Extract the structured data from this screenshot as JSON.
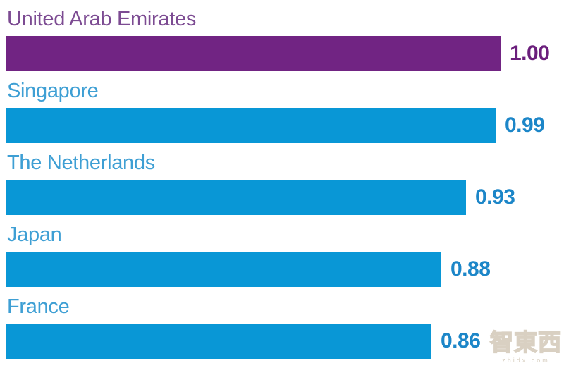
{
  "chart_data": {
    "type": "bar",
    "orientation": "horizontal",
    "title": "",
    "xlabel": "",
    "ylabel": "",
    "xlim": [
      0,
      1.0
    ],
    "grid": false,
    "legend_position": "none",
    "categories": [
      "United Arab Emirates",
      "Singapore",
      "The Netherlands",
      "Japan",
      "France"
    ],
    "values": [
      1.0,
      0.99,
      0.93,
      0.88,
      0.86
    ],
    "value_labels": [
      "1.00",
      "0.99",
      "0.93",
      "0.88",
      "0.86"
    ],
    "bars": [
      {
        "label": "United Arab Emirates",
        "value": 1.0,
        "value_label": "1.00",
        "bar_color": "#712483",
        "label_color": "#7C4B92",
        "value_color": "#6B1F7C"
      },
      {
        "label": "Singapore",
        "value": 0.99,
        "value_label": "0.99",
        "bar_color": "#0997D6",
        "label_color": "#3E9FD4",
        "value_color": "#1C86C8"
      },
      {
        "label": "The Netherlands",
        "value": 0.93,
        "value_label": "0.93",
        "bar_color": "#0997D6",
        "label_color": "#3E9FD4",
        "value_color": "#1C86C8"
      },
      {
        "label": "Japan",
        "value": 0.88,
        "value_label": "0.88",
        "bar_color": "#0997D6",
        "label_color": "#3E9FD4",
        "value_color": "#1C86C8"
      },
      {
        "label": "France",
        "value": 0.86,
        "value_label": "0.86",
        "bar_color": "#0997D6",
        "label_color": "#3E9FD4",
        "value_color": "#1C86C8"
      }
    ],
    "colors": {
      "highlight_bar": "#712483",
      "default_bar": "#0997D6"
    }
  },
  "watermark": {
    "text": "智東西",
    "subtext": "zhidx.com"
  }
}
